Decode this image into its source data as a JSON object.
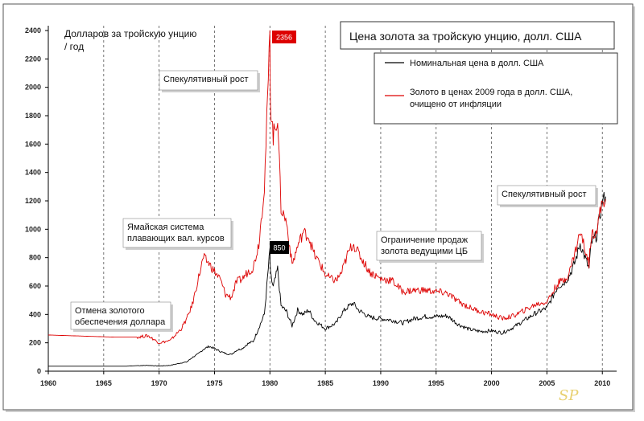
{
  "chart_data": {
    "type": "line",
    "title": "Цена золота за тройскую унцию, долл. США",
    "unit_label_line1": "Долларов за тройскую унцию",
    "unit_label_line2": "/ год",
    "xlim": [
      1960,
      2011
    ],
    "ylim": [
      0,
      2400
    ],
    "x_ticks": [
      1960,
      1965,
      1970,
      1975,
      1980,
      1985,
      1990,
      1995,
      2000,
      2005,
      2010
    ],
    "y_ticks": [
      0,
      200,
      400,
      600,
      800,
      1000,
      1200,
      1400,
      1600,
      1800,
      2000,
      2200,
      2400
    ],
    "grid": "dashed-vertical",
    "legend": "top-right",
    "series": [
      {
        "name": "Номинальная цена в долл. США",
        "color": "#000000",
        "x": [
          1960,
          1961,
          1962,
          1963,
          1964,
          1965,
          1966,
          1967,
          1968,
          1969,
          1970,
          1971,
          1972,
          1972.5,
          1973,
          1973.5,
          1974,
          1974.5,
          1975,
          1975.5,
          1976,
          1976.5,
          1977,
          1977.5,
          1978,
          1978.5,
          1979,
          1979.5,
          1980,
          1980.05,
          1980.3,
          1980.7,
          1981,
          1981.5,
          1982,
          1982.5,
          1983,
          1983.5,
          1984,
          1984.5,
          1985,
          1985.5,
          1986,
          1986.5,
          1987,
          1987.5,
          1988,
          1989,
          1990,
          1991,
          1992,
          1993,
          1994,
          1995,
          1996,
          1997,
          1998,
          1999,
          2000,
          2001,
          2002,
          2003,
          2004,
          2005,
          2006,
          2006.5,
          2007,
          2007.5,
          2008,
          2008.3,
          2008.8,
          2009,
          2009.5,
          2010,
          2010.3
        ],
        "y": [
          35,
          35,
          35,
          35,
          35,
          35,
          35,
          35,
          39,
          41,
          36,
          41,
          58,
          65,
          97,
          120,
          154,
          175,
          160,
          140,
          125,
          118,
          148,
          160,
          193,
          210,
          307,
          400,
          850,
          680,
          590,
          720,
          460,
          420,
          320,
          430,
          400,
          430,
          360,
          330,
          300,
          320,
          340,
          410,
          450,
          480,
          430,
          380,
          370,
          360,
          340,
          370,
          385,
          385,
          390,
          330,
          295,
          280,
          285,
          270,
          310,
          360,
          410,
          445,
          600,
          620,
          670,
          760,
          900,
          830,
          720,
          900,
          960,
          1200,
          1230
        ]
      },
      {
        "name": "Золото в ценах 2009 года в долл. США, очищено от инфляции",
        "color": "#dd0000",
        "x": [
          1960,
          1962,
          1964,
          1966,
          1968,
          1969,
          1970,
          1971,
          1972,
          1972.5,
          1973,
          1973.5,
          1974,
          1974.5,
          1975,
          1975.5,
          1976,
          1976.5,
          1977,
          1977.5,
          1978,
          1978.5,
          1979,
          1979.5,
          1980,
          1980.05,
          1980.3,
          1980.7,
          1981,
          1981.5,
          1982,
          1982.5,
          1983,
          1983.5,
          1984,
          1984.5,
          1985,
          1985.5,
          1986,
          1986.5,
          1987,
          1987.5,
          1988,
          1989,
          1990,
          1991,
          1992,
          1993,
          1994,
          1995,
          1996,
          1997,
          1998,
          1999,
          2000,
          2001,
          2002,
          2003,
          2004,
          2005,
          2006,
          2006.5,
          2007,
          2007.5,
          2008,
          2008.3,
          2008.8,
          2009,
          2009.5,
          2010,
          2010.3
        ],
        "y": [
          255,
          250,
          245,
          240,
          240,
          250,
          200,
          215,
          300,
          370,
          470,
          640,
          800,
          760,
          700,
          650,
          540,
          520,
          630,
          650,
          700,
          730,
          900,
          1300,
          2356,
          1900,
          1650,
          1800,
          1150,
          1050,
          750,
          880,
          980,
          950,
          820,
          760,
          680,
          650,
          640,
          700,
          820,
          900,
          830,
          700,
          650,
          640,
          560,
          570,
          570,
          560,
          550,
          490,
          450,
          420,
          400,
          370,
          390,
          430,
          470,
          490,
          620,
          640,
          690,
          830,
          980,
          900,
          760,
          960,
          1000,
          1200,
          1210
        ]
      }
    ],
    "annotations": [
      {
        "text": "Отмена золотого",
        "x": 1970.2,
        "y": 420
      },
      {
        "text": "обеспечения доллара",
        "x": 1970.2,
        "y": 420
      },
      {
        "text": "Ямайская система",
        "x": 1976,
        "y": 1000
      },
      {
        "text": "плавающих вал. курсов",
        "x": 1976,
        "y": 1000
      },
      {
        "text": "Спекулятивный рост",
        "x": 1980,
        "y": 2100
      },
      {
        "text": "Ограничение продаж",
        "x": 1999.5,
        "y": 830
      },
      {
        "text": "золота ведущими ЦБ",
        "x": 1999.5,
        "y": 830
      },
      {
        "text": "Спекулятивный рост",
        "x": 2010,
        "y": 1250
      }
    ],
    "badges": [
      {
        "text": "2356",
        "x": 1980.1,
        "y": 2356,
        "color": "#dd0000"
      },
      {
        "text": "850",
        "x": 1980.1,
        "y": 850,
        "color": "#000000"
      }
    ],
    "watermark": "SP"
  }
}
